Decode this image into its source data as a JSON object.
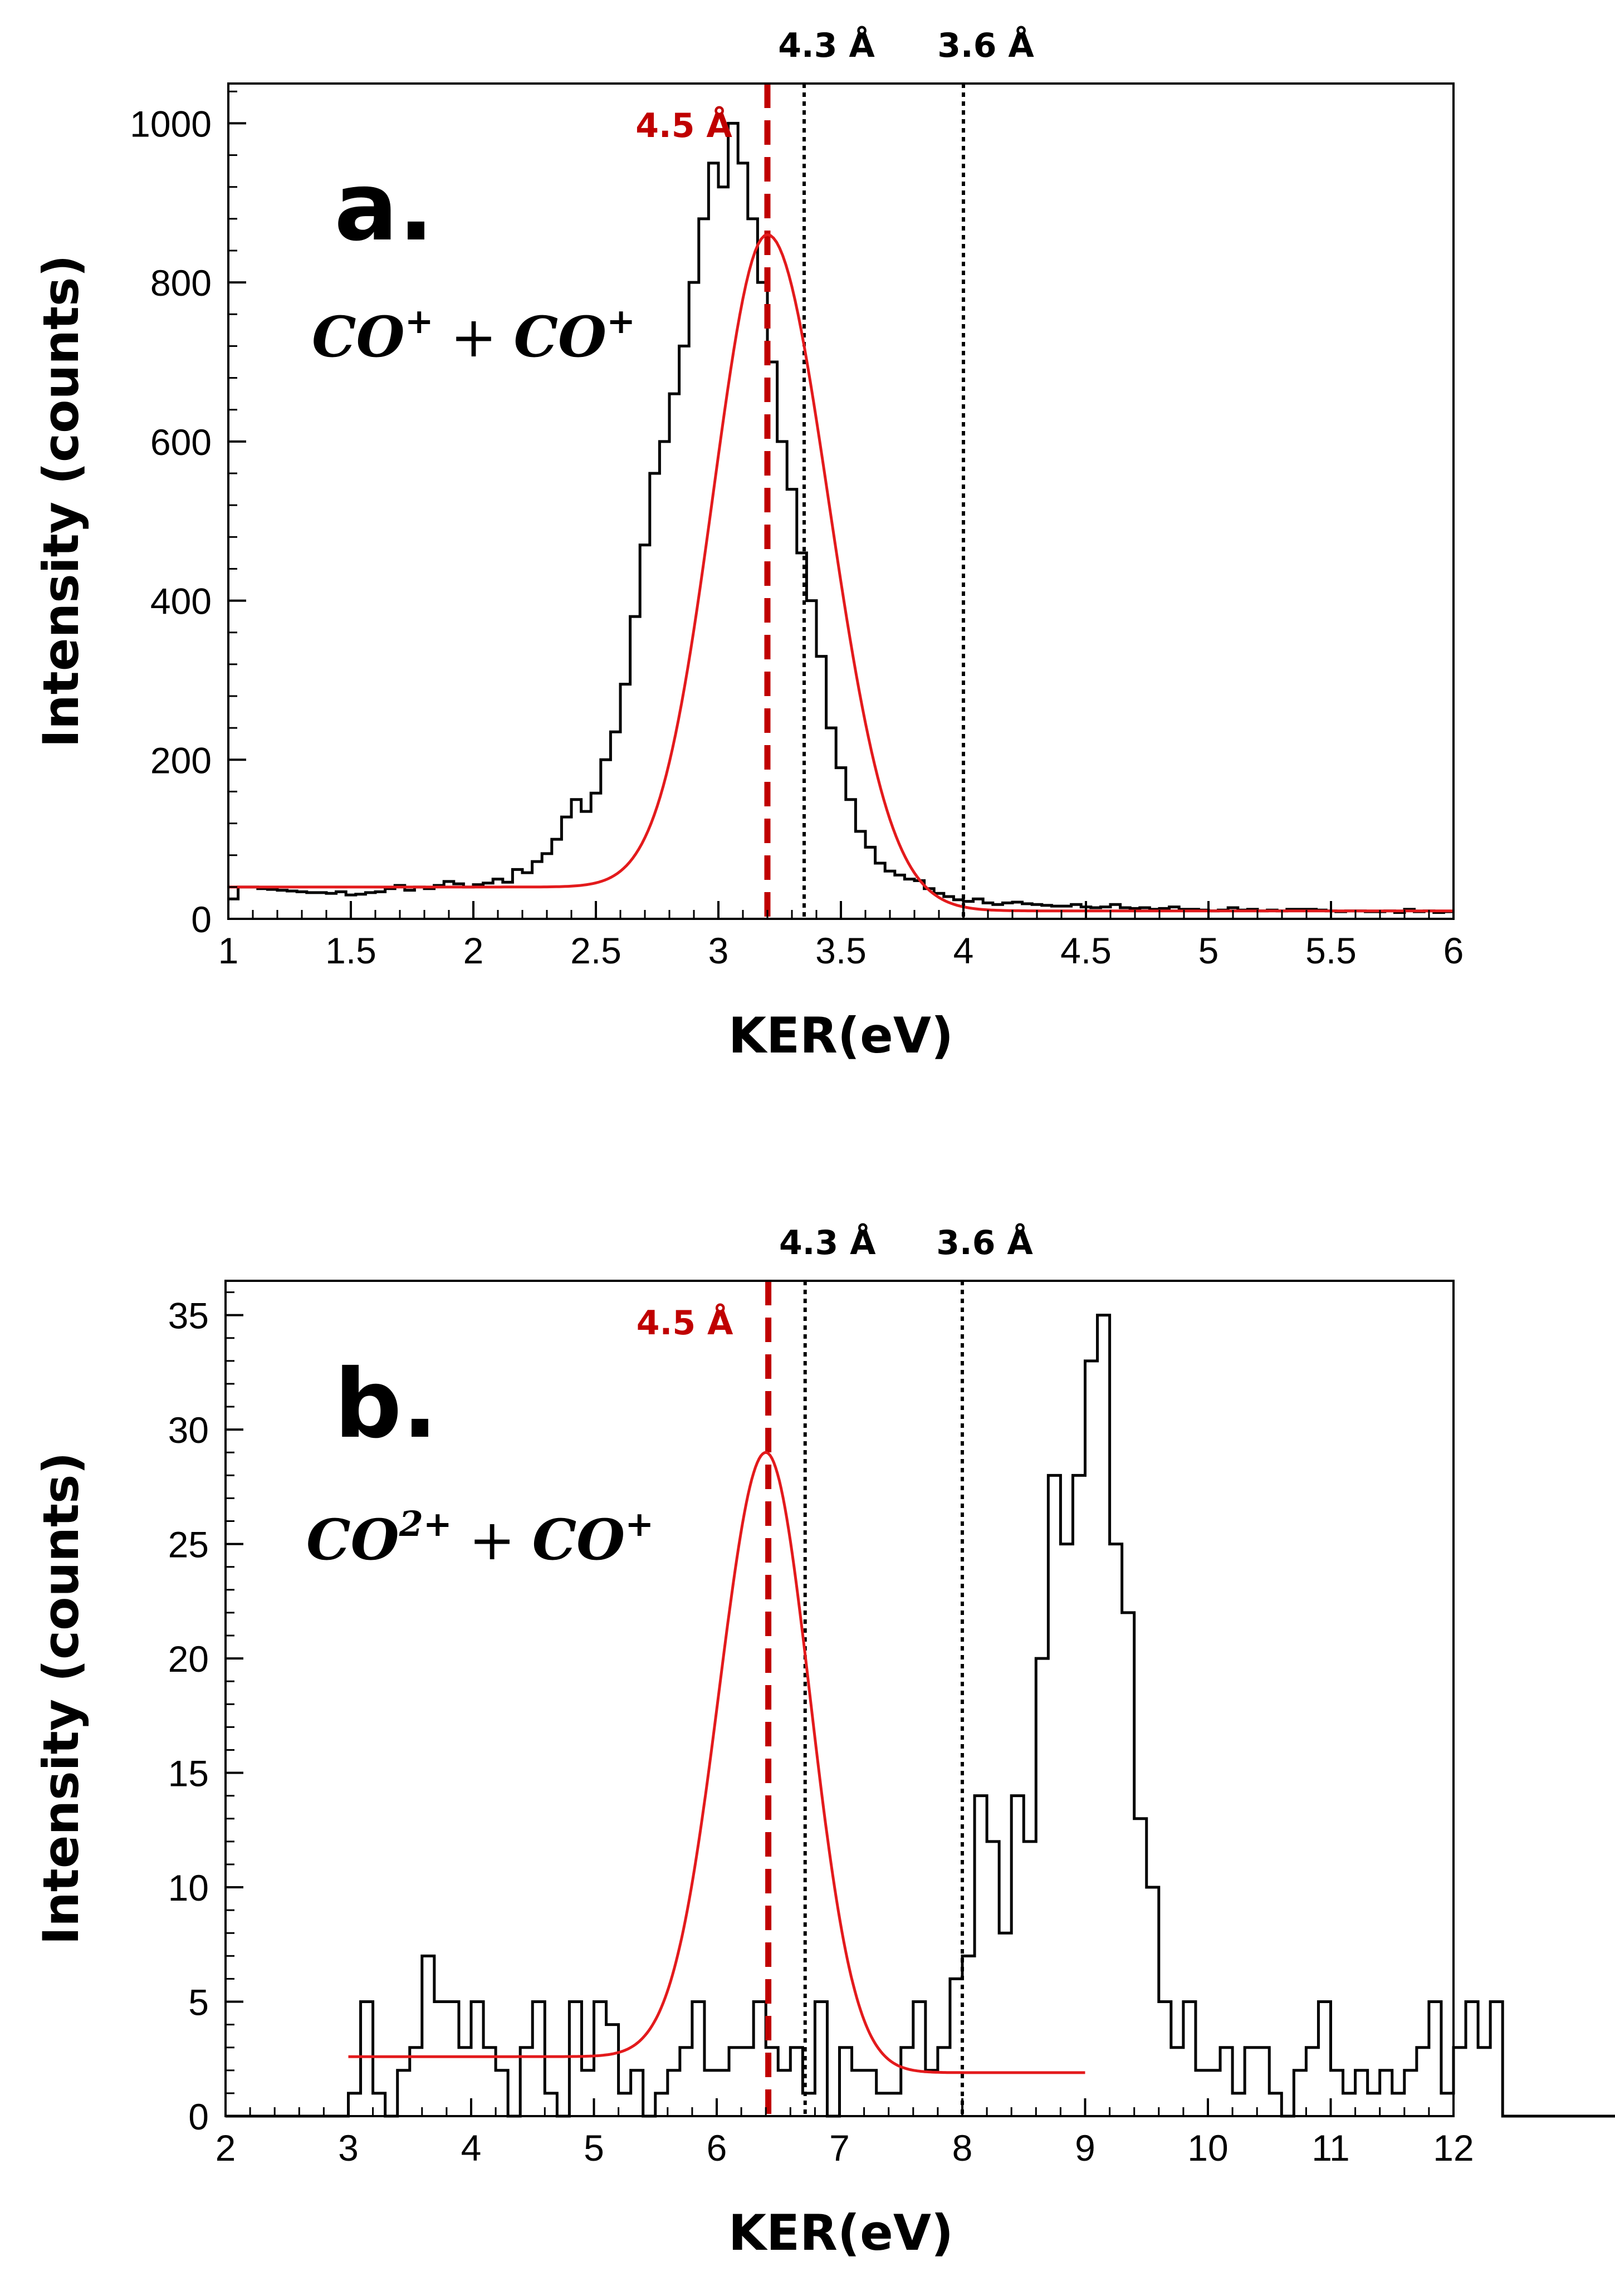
{
  "chart_data": [
    {
      "type": "histogram",
      "panel_label": "a.",
      "species": {
        "p1": "CO",
        "p1_charge": "+",
        "plus": "+",
        "p2": "CO",
        "p2_charge": "+"
      },
      "xlabel": "KER(eV)",
      "ylabel": "Intensity (counts)",
      "xlim": [
        1,
        6
      ],
      "ylim": [
        0,
        1050
      ],
      "xticks": [
        1,
        1.5,
        2,
        2.5,
        3,
        3.5,
        4,
        4.5,
        5,
        5.5,
        6
      ],
      "xtick_labels": [
        "1",
        "1.5",
        "2",
        "2.5",
        "3",
        "3.5",
        "4",
        "4.5",
        "5",
        "5.5",
        "6"
      ],
      "yticks": [
        0,
        200,
        400,
        600,
        800,
        1000
      ],
      "ytick_labels": [
        "0",
        "200",
        "400",
        "600",
        "800",
        "1000"
      ],
      "hist_color": "#000000",
      "fit_color": "#e31a1c",
      "histogram": {
        "bin_start": 1.0,
        "bin_width": 0.04,
        "counts": [
          25,
          40,
          40,
          38,
          37,
          36,
          35,
          34,
          33,
          33,
          32,
          34,
          30,
          31,
          33,
          34,
          38,
          42,
          36,
          40,
          38,
          42,
          47,
          44,
          40,
          43,
          45,
          50,
          46,
          62,
          58,
          72,
          82,
          100,
          128,
          150,
          135,
          158,
          200,
          235,
          295,
          380,
          470,
          560,
          600,
          660,
          720,
          800,
          880,
          950,
          920,
          1000,
          950,
          880,
          800,
          700,
          600,
          540,
          460,
          400,
          330,
          240,
          190,
          150,
          110,
          90,
          70,
          60,
          55,
          50,
          48,
          38,
          32,
          28,
          24,
          22,
          25,
          20,
          18,
          20,
          21,
          19,
          18,
          17,
          16,
          16,
          18,
          15,
          14,
          15,
          18,
          14,
          13,
          14,
          12,
          13,
          15,
          12,
          12,
          11,
          10,
          11,
          14,
          11,
          12,
          10,
          11,
          10,
          12,
          12,
          12,
          11,
          10,
          9,
          10,
          10,
          9,
          9,
          10,
          8,
          12,
          9,
          10,
          8,
          9
        ]
      },
      "fit": {
        "baseline_left": 40,
        "baseline_right": 10,
        "peak_x": 3.2,
        "peak_height": 860,
        "sigma_left": 0.22,
        "sigma_right": 0.25,
        "x_start": 1.0,
        "x_end": 6.0
      },
      "markers": [
        {
          "x": 3.2,
          "label": "4.5 Å",
          "style": "dashed",
          "color": "#c00000"
        },
        {
          "x": 3.35,
          "label": "4.3 Å",
          "style": "dotted",
          "color": "#000000"
        },
        {
          "x": 4.0,
          "label": "3.6 Å",
          "style": "dotted",
          "color": "#000000"
        }
      ]
    },
    {
      "type": "histogram",
      "panel_label": "b.",
      "species": {
        "p1": "CO",
        "p1_charge": "2+",
        "plus": "+",
        "p2": "CO",
        "p2_charge": "+"
      },
      "xlabel": "KER(eV)",
      "ylabel": "Intensity (counts)",
      "xlim": [
        2,
        12
      ],
      "ylim": [
        0,
        36.5
      ],
      "xticks": [
        2,
        3,
        4,
        5,
        6,
        7,
        8,
        9,
        10,
        11,
        12
      ],
      "xtick_labels": [
        "2",
        "3",
        "4",
        "5",
        "6",
        "7",
        "8",
        "9",
        "10",
        "11",
        "12"
      ],
      "yticks": [
        0,
        5,
        10,
        15,
        20,
        25,
        30,
        35
      ],
      "ytick_labels": [
        "0",
        "5",
        "10",
        "15",
        "20",
        "25",
        "30",
        "35"
      ],
      "hist_color": "#000000",
      "fit_color": "#e31a1c",
      "histogram": {
        "bin_start": 2.0,
        "bin_width": 0.1,
        "counts": [
          0,
          0,
          0,
          0,
          0,
          0,
          0,
          0,
          0,
          0,
          1,
          5,
          1,
          0,
          2,
          3,
          7,
          5,
          5,
          3,
          5,
          3,
          2,
          0,
          3,
          5,
          1,
          0,
          5,
          2,
          5,
          4,
          1,
          2,
          0,
          1,
          2,
          3,
          5,
          2,
          2,
          3,
          3,
          5,
          3,
          2,
          3,
          1,
          5,
          0,
          3,
          2,
          2,
          1,
          1,
          3,
          5,
          2,
          3,
          6,
          7,
          14,
          12,
          8,
          14,
          12,
          20,
          28,
          25,
          28,
          33,
          35,
          25,
          22,
          13,
          10,
          5,
          3,
          5,
          2,
          2,
          3,
          1,
          3,
          3,
          1,
          0,
          2,
          3,
          5,
          2,
          1,
          2,
          1,
          2,
          1,
          2,
          3,
          5,
          1,
          3,
          5,
          3,
          5,
          0,
          0,
          0,
          0,
          0,
          0,
          0,
          0,
          0,
          0,
          0,
          0,
          0,
          0,
          0,
          0,
          0,
          0,
          0,
          0,
          0,
          0,
          0,
          0,
          0,
          0,
          0,
          0,
          0,
          0,
          0,
          0,
          0,
          0,
          0,
          0,
          0,
          0,
          0,
          0,
          0,
          0,
          0,
          0,
          0,
          0,
          0,
          0,
          0,
          0,
          0,
          0,
          0,
          0,
          0,
          0,
          0,
          0,
          0,
          0,
          0,
          0,
          0,
          0,
          0,
          0,
          0,
          0,
          0,
          0,
          0,
          0,
          0,
          0,
          0,
          0,
          0
        ]
      },
      "fit": {
        "baseline_left": 2.6,
        "baseline_right": 1.9,
        "peak_x": 6.4,
        "peak_height": 29.0,
        "sigma_left": 0.38,
        "sigma_right": 0.36,
        "x_start": 3.0,
        "x_end": 9.0
      },
      "markers": [
        {
          "x": 6.42,
          "label": "4.5 Å",
          "style": "dashed",
          "color": "#c00000"
        },
        {
          "x": 6.72,
          "label": "4.3 Å",
          "style": "dotted",
          "color": "#000000"
        },
        {
          "x": 8.0,
          "label": "3.6 Å",
          "style": "dotted",
          "color": "#000000"
        }
      ]
    }
  ]
}
